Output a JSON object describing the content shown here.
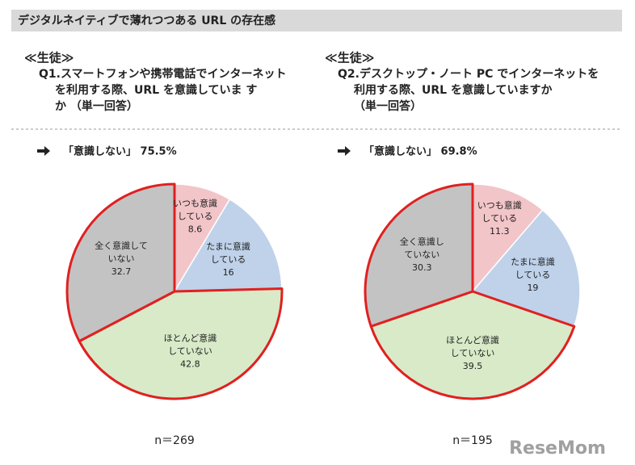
{
  "header": {
    "title": "デジタルネイティブで薄れつつある URL の存在感"
  },
  "watermark": "ReseMom",
  "chart_data": [
    {
      "type": "pie",
      "group": "≪生徒≫",
      "title": [
        "Q1.スマートフォンや携帯電話でインターネット",
        "を利用する際、URL を意識していま す",
        "か （単一回答）"
      ],
      "annotation": "「意識しない」 75.5%",
      "categories": [
        [
          "いつも意識",
          "している"
        ],
        [
          "たまに意識",
          "している"
        ],
        [
          "ほとんど意識",
          "していない"
        ],
        [
          "全く意識して",
          "いない"
        ]
      ],
      "values": [
        8.6,
        16.0,
        42.8,
        32.7
      ],
      "colors": [
        "#f2c5c9",
        "#bfd2ea",
        "#d8eac8",
        "#c3c3c3"
      ],
      "highlight": [
        2,
        3
      ],
      "highlight_color": "#e02020",
      "note": "n＝269"
    },
    {
      "type": "pie",
      "group": "≪生徒≫",
      "title": [
        "Q2.デスクトップ・ノート PC でインターネットを",
        "利用する際、URL を意識していますか",
        "（単一回答）"
      ],
      "annotation": "「意識しない」 69.8%",
      "categories": [
        [
          "いつも意識",
          "している"
        ],
        [
          "たまに意識",
          "している"
        ],
        [
          "ほとんど意識",
          "していない"
        ],
        [
          "全く意識し",
          "ていない"
        ]
      ],
      "values": [
        11.3,
        19.0,
        39.5,
        30.3
      ],
      "colors": [
        "#f2c5c9",
        "#bfd2ea",
        "#d8eac8",
        "#c3c3c3"
      ],
      "highlight": [
        2,
        3
      ],
      "highlight_color": "#e02020",
      "note": "n＝195"
    }
  ]
}
